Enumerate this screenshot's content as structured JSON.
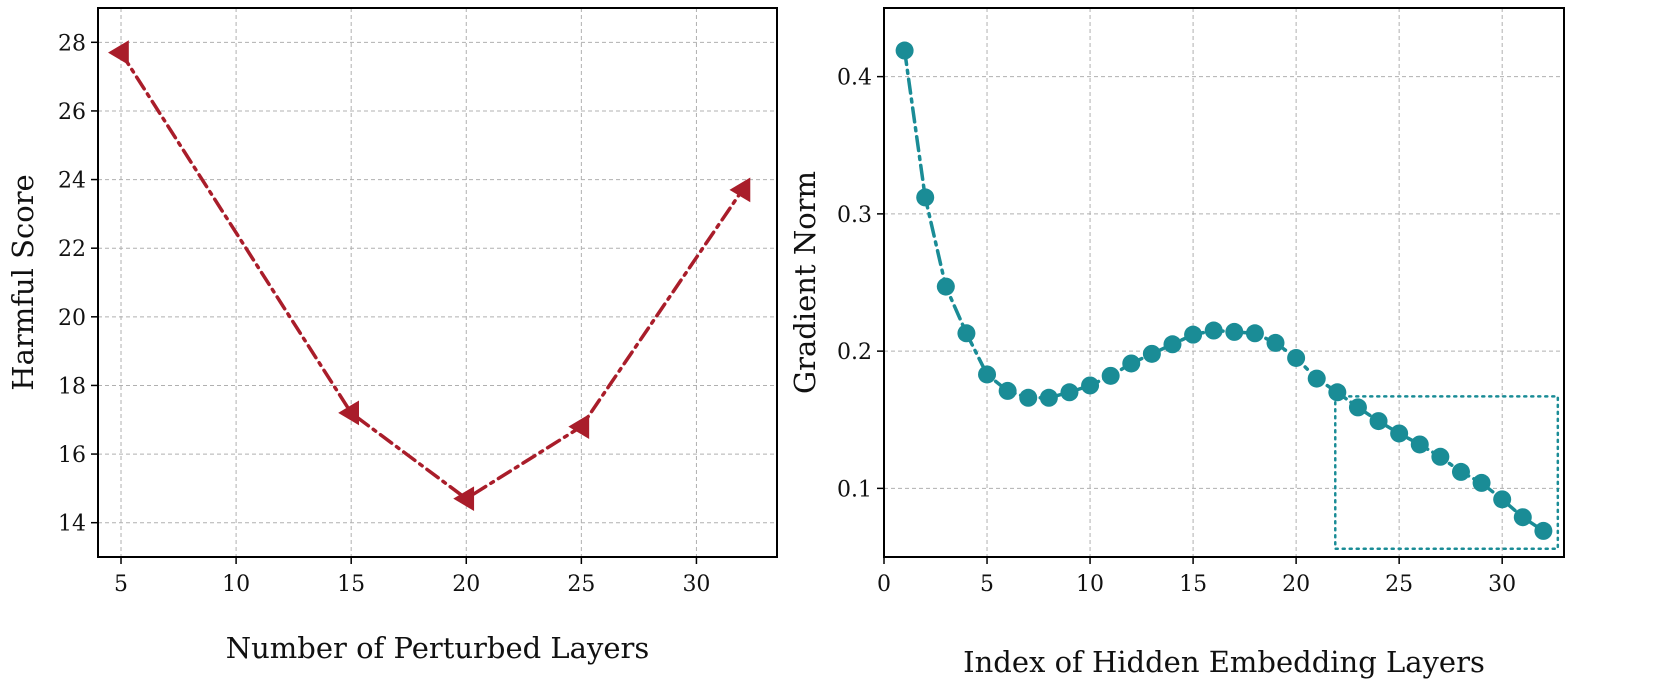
{
  "chart_data": [
    {
      "type": "line",
      "xlabel": "Number of Perturbed Layers",
      "ylabel": "Harmful Score",
      "x": [
        5,
        15,
        20,
        25,
        32
      ],
      "series": [
        {
          "values": [
            27.7,
            17.2,
            14.7,
            16.8,
            23.7
          ],
          "color": "#A91D2A",
          "marker": "triangle-left",
          "linestyle": "dash-dot"
        }
      ],
      "xlim": [
        4,
        33.5
      ],
      "ylim": [
        13,
        29
      ],
      "xticks": [
        5,
        10,
        15,
        20,
        25,
        30
      ],
      "yticks": [
        14,
        16,
        18,
        20,
        22,
        24,
        26,
        28
      ],
      "grid": true
    },
    {
      "type": "line",
      "xlabel": "Index of Hidden Embedding Layers",
      "ylabel": "Gradient Norm",
      "x": [
        1,
        2,
        3,
        4,
        5,
        6,
        7,
        8,
        9,
        10,
        11,
        12,
        13,
        14,
        15,
        16,
        17,
        18,
        19,
        20,
        21,
        22,
        23,
        24,
        25,
        26,
        27,
        28,
        29,
        30,
        31,
        32
      ],
      "series": [
        {
          "values": [
            0.419,
            0.312,
            0.247,
            0.213,
            0.183,
            0.171,
            0.166,
            0.166,
            0.17,
            0.175,
            0.182,
            0.191,
            0.198,
            0.205,
            0.212,
            0.215,
            0.214,
            0.213,
            0.206,
            0.195,
            0.18,
            0.17,
            0.159,
            0.149,
            0.14,
            0.132,
            0.123,
            0.112,
            0.104,
            0.092,
            0.079,
            0.069
          ],
          "color": "#1A8C96",
          "marker": "circle",
          "linestyle": "dash-dot"
        }
      ],
      "xlim": [
        0,
        33
      ],
      "ylim": [
        0.05,
        0.45
      ],
      "xticks": [
        0,
        5,
        10,
        15,
        20,
        25,
        30
      ],
      "yticks": [
        0.1,
        0.2,
        0.3,
        0.4
      ],
      "grid": true,
      "annotations": [
        {
          "type": "dotted-rectangle",
          "x": [
            21.9,
            32.7
          ],
          "y": [
            0.056,
            0.167
          ],
          "color": "#1A8C96"
        }
      ]
    }
  ]
}
